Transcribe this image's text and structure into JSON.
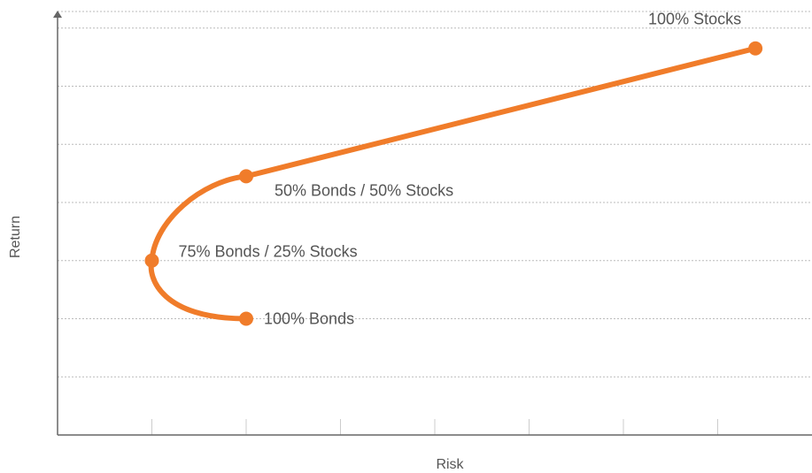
{
  "chart_data": {
    "type": "line",
    "title": "",
    "xlabel": "Risk",
    "ylabel": "Return",
    "grid": "horizontal",
    "color": "#f07c2a",
    "points": [
      {
        "label": "100% Bonds",
        "risk": 2.0,
        "return": 2.0
      },
      {
        "label": "75% Bonds / 25% Stocks",
        "risk": 1.0,
        "return": 3.0
      },
      {
        "label": "50% Bonds / 50% Stocks",
        "risk": 2.0,
        "return": 4.45
      },
      {
        "label": "100% Stocks",
        "risk": 7.4,
        "return": 6.65
      }
    ],
    "xlim": [
      0,
      8
    ],
    "ylim": [
      0,
      7.3
    ]
  }
}
